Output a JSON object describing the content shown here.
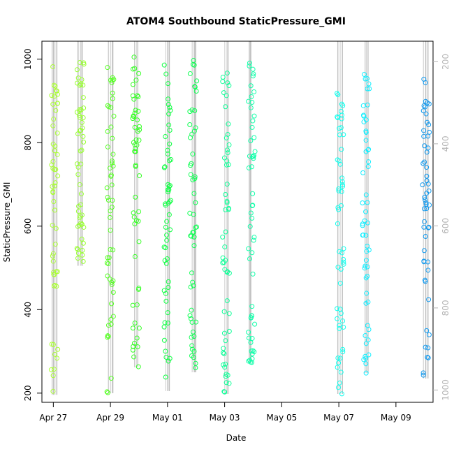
{
  "chart_data": {
    "type": "scatter",
    "title": "ATOM4 Southbound StaticPressure_GMI",
    "xlabel": "Date",
    "ylabel": "StaticPressure_GMI",
    "xlim": [
      -0.4,
      13.3
    ],
    "ylim": [
      178,
      1043
    ],
    "x_ticks": [
      {
        "value": 0,
        "label": "Apr 27"
      },
      {
        "value": 2,
        "label": "Apr 29"
      },
      {
        "value": 4,
        "label": "May 01"
      },
      {
        "value": 6,
        "label": "May 03"
      },
      {
        "value": 8,
        "label": "May 05"
      },
      {
        "value": 10,
        "label": "May 07"
      },
      {
        "value": 12,
        "label": "May 09"
      }
    ],
    "y_ticks": [
      200,
      400,
      600,
      800,
      1000
    ],
    "y2_ticks": [
      200,
      400,
      600,
      800,
      1000
    ],
    "y2_range": [
      150,
      1030
    ],
    "profile_lines": "#bebebe",
    "point_style": "open circles",
    "clusters": [
      {
        "x": 0.05,
        "ymin": 196,
        "ymax": 985,
        "color": "#aaff33"
      },
      {
        "x": 0.95,
        "ymin": 505,
        "ymax": 995,
        "color": "#99ff33"
      },
      {
        "x": 2.0,
        "ymin": 200,
        "ymax": 985,
        "color": "#55ff22"
      },
      {
        "x": 2.9,
        "ymin": 262,
        "ymax": 1010,
        "color": "#33ff22"
      },
      {
        "x": 4.0,
        "ymin": 205,
        "ymax": 990,
        "color": "#11ff44"
      },
      {
        "x": 4.9,
        "ymin": 250,
        "ymax": 1000,
        "color": "#11ff55"
      },
      {
        "x": 6.05,
        "ymin": 198,
        "ymax": 1005,
        "color": "#11ff99"
      },
      {
        "x": 6.95,
        "ymin": 272,
        "ymax": 1005,
        "color": "#11ffaa"
      },
      {
        "x": 10.05,
        "ymin": 198,
        "ymax": 955,
        "color": "#11ffee"
      },
      {
        "x": 10.95,
        "ymin": 248,
        "ymax": 970,
        "color": "#11eeff"
      },
      {
        "x": 13.05,
        "ymin": 235,
        "ymax": 965,
        "color": "#1199ee"
      }
    ]
  }
}
